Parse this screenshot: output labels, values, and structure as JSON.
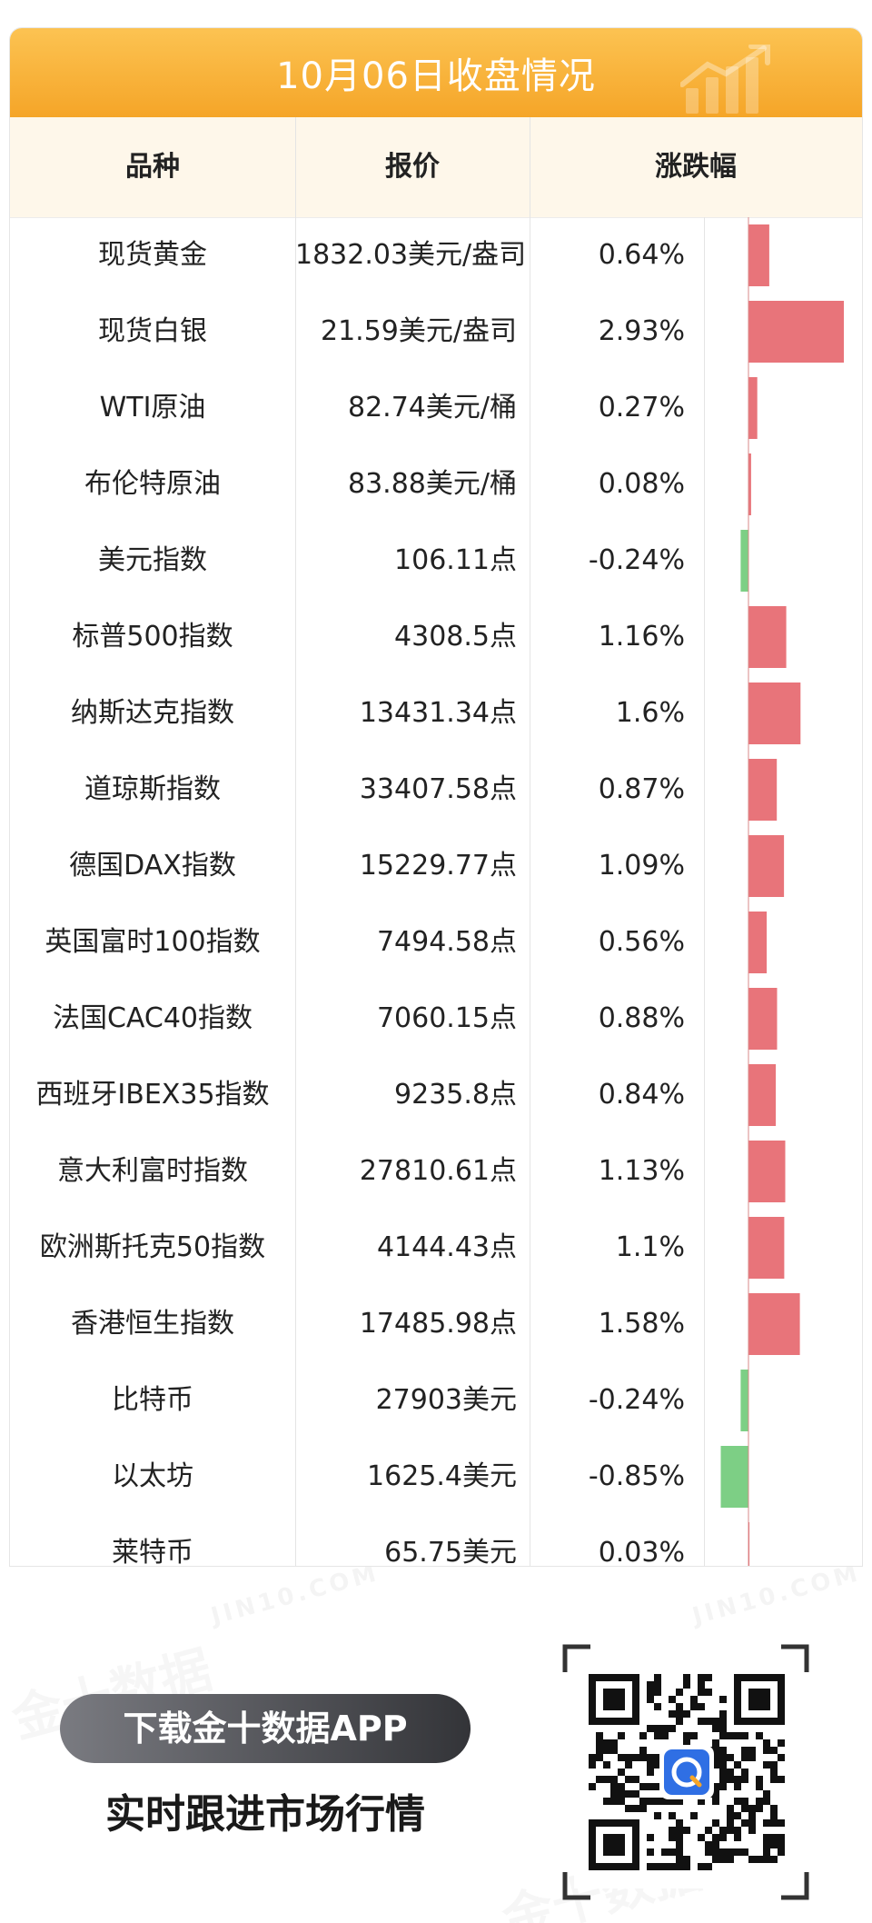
{
  "header": {
    "title": "10月06日收盘情况",
    "col_name": "品种",
    "col_price": "报价",
    "col_change": "涨跌幅"
  },
  "chart_data": {
    "type": "table",
    "columns": [
      "品种",
      "报价",
      "涨跌幅"
    ],
    "bar_colors": {
      "positive": "#e8747a",
      "negative": "#7dcf85"
    },
    "rows": [
      {
        "name": "现货黄金",
        "price": "1832.03美元/盎司",
        "change_label": "0.64%",
        "change": 0.64
      },
      {
        "name": "现货白银",
        "price": "21.59美元/盎司",
        "change_label": "2.93%",
        "change": 2.93
      },
      {
        "name": "WTI原油",
        "price": "82.74美元/桶",
        "change_label": "0.27%",
        "change": 0.27
      },
      {
        "name": "布伦特原油",
        "price": "83.88美元/桶",
        "change_label": "0.08%",
        "change": 0.08
      },
      {
        "name": "美元指数",
        "price": "106.11点",
        "change_label": "-0.24%",
        "change": -0.24
      },
      {
        "name": "标普500指数",
        "price": "4308.5点",
        "change_label": "1.16%",
        "change": 1.16
      },
      {
        "name": "纳斯达克指数",
        "price": "13431.34点",
        "change_label": "1.6%",
        "change": 1.6
      },
      {
        "name": "道琼斯指数",
        "price": "33407.58点",
        "change_label": "0.87%",
        "change": 0.87
      },
      {
        "name": "德国DAX指数",
        "price": "15229.77点",
        "change_label": "1.09%",
        "change": 1.09
      },
      {
        "name": "英国富时100指数",
        "price": "7494.58点",
        "change_label": "0.56%",
        "change": 0.56
      },
      {
        "name": "法国CAC40指数",
        "price": "7060.15点",
        "change_label": "0.88%",
        "change": 0.88
      },
      {
        "name": "西班牙IBEX35指数",
        "price": "9235.8点",
        "change_label": "0.84%",
        "change": 0.84
      },
      {
        "name": "意大利富时指数",
        "price": "27810.61点",
        "change_label": "1.13%",
        "change": 1.13
      },
      {
        "name": "欧洲斯托克50指数",
        "price": "4144.43点",
        "change_label": "1.1%",
        "change": 1.1
      },
      {
        "name": "香港恒生指数",
        "price": "17485.98点",
        "change_label": "1.58%",
        "change": 1.58
      },
      {
        "name": "比特币",
        "price": "27903美元",
        "change_label": "-0.24%",
        "change": -0.24
      },
      {
        "name": "以太坊",
        "price": "1625.4美元",
        "change_label": "-0.85%",
        "change": -0.85
      },
      {
        "name": "莱特币",
        "price": "65.75美元",
        "change_label": "0.03%",
        "change": 0.03
      }
    ]
  },
  "footer": {
    "download_label": "下载金十数据APP",
    "slogan": "实时跟进市场行情",
    "qr_icon": "qr-code-icon"
  },
  "watermark": {
    "cn": "金十数据",
    "en": "JIN10.COM"
  }
}
